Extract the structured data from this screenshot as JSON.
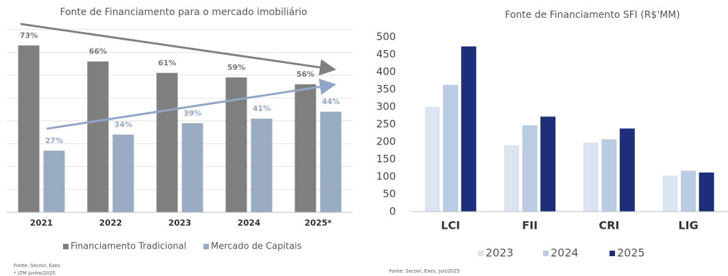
{
  "chart_data": [
    {
      "type": "bar",
      "title": "Fonte de Financiamento para o mercado imobiliário",
      "categories": [
        "2021",
        "2022",
        "2023",
        "2024",
        "2025*"
      ],
      "series": [
        {
          "name": "Financiamento Tradicional",
          "color": "#7f7f7f",
          "label_color": "#777777",
          "values": [
            73,
            66,
            61,
            59,
            56
          ],
          "value_labels": [
            "73%",
            "66%",
            "61%",
            "59%",
            "56%"
          ]
        },
        {
          "name": "Mercado de Capitais",
          "color": "#9aabc4",
          "label_color": "#93a7c4",
          "values": [
            27,
            34,
            39,
            41,
            44
          ],
          "value_labels": [
            "27%",
            "34%",
            "39%",
            "41%",
            "44%"
          ]
        }
      ],
      "ylim": [
        0,
        80
      ],
      "yticks": [
        0,
        10,
        20,
        30,
        40,
        50,
        60,
        70,
        80
      ],
      "tick_labels": false,
      "grid": true,
      "notes": [
        "Fonte: Secovi, Exes",
        "* LTM Junho/2025"
      ]
    },
    {
      "type": "bar",
      "title": "Fonte de Financiamento SFI (R$'MM)",
      "categories": [
        "LCI",
        "FII",
        "CRI",
        "LIG"
      ],
      "series": [
        {
          "name": "2023",
          "color": "#dbe5f1",
          "values": [
            300,
            190,
            198,
            103
          ]
        },
        {
          "name": "2024",
          "color": "#b9cce4",
          "values": [
            363,
            247,
            207,
            117
          ]
        },
        {
          "name": "2025",
          "color": "#1f2e7a",
          "values": [
            473,
            272,
            238,
            112
          ]
        }
      ],
      "ylim": [
        0,
        500
      ],
      "yticks": [
        0,
        50,
        100,
        150,
        200,
        250,
        300,
        350,
        400,
        450,
        500
      ],
      "tick_labels": true,
      "grid": false,
      "notes": [
        "Fonte: Secovi, Exes, Jun/2025"
      ]
    }
  ]
}
